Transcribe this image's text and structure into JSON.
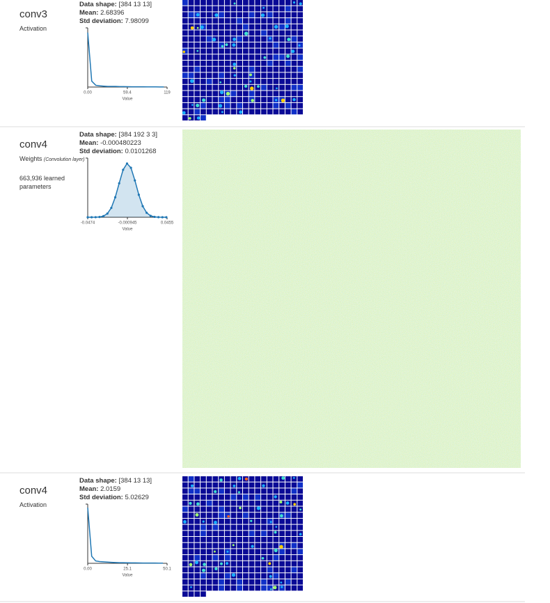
{
  "labels": {
    "data_shape": "Data shape:",
    "mean": "Mean:",
    "std": "Std deviation:"
  },
  "layers": [
    {
      "name": "conv3",
      "type": "Activation",
      "data_shape": "[384 13 13]",
      "mean": "2.68396",
      "std": "7.98099",
      "histogram": {
        "type": "line",
        "color": "#1f77b4",
        "fill": false,
        "markers": false,
        "xlabel": "Value",
        "xlim": [
          0,
          119
        ],
        "ylim": [
          0,
          100
        ],
        "xticks": [
          {
            "value": 0,
            "label": "0.00"
          },
          59.4,
          119
        ],
        "x": [
          0,
          6,
          12,
          18,
          24,
          30,
          36,
          42,
          48,
          54,
          60,
          66,
          72,
          78,
          84,
          90,
          96,
          102,
          108,
          114
        ],
        "values": [
          92,
          10,
          3,
          2,
          1.5,
          1,
          1,
          1,
          0.8,
          0.7,
          0.6,
          0.5,
          0.5,
          0.4,
          0.4,
          0.3,
          0.3,
          0.3,
          0.2,
          0.2
        ]
      }
    },
    {
      "name": "conv4",
      "type": "Weights",
      "type_note": "(Convolution layer)",
      "params": "663,936 learned parameters",
      "data_shape": "[384 192 3 3]",
      "mean": "-0.000480223",
      "std": "0.0101268",
      "histogram": {
        "type": "line",
        "color": "#1f77b4",
        "fill": true,
        "markers": true,
        "xlabel": "Value",
        "xlim": [
          -0.0474,
          0.0455
        ],
        "ylim": [
          0,
          110
        ],
        "xticks": [
          -0.0474,
          -0.000945,
          0.0455
        ],
        "x": [
          -0.0474,
          -0.0428,
          -0.0382,
          -0.0336,
          -0.029,
          -0.0244,
          -0.0198,
          -0.0152,
          -0.0106,
          -0.006,
          -0.0014,
          0.0032,
          0.0078,
          0.0124,
          0.017,
          0.0216,
          0.0262,
          0.0308,
          0.0354,
          0.04,
          0.0446
        ],
        "values": [
          0,
          0,
          0.1,
          0.5,
          2.1,
          6.8,
          17.4,
          37,
          63.1,
          88.2,
          99.9,
          91.9,
          68.5,
          41.8,
          20.5,
          8.3,
          2.7,
          0.7,
          0.2,
          0,
          0
        ]
      }
    },
    {
      "name": "conv4",
      "type": "Activation",
      "data_shape": "[384 13 13]",
      "mean": "2.0159",
      "std": "5.02629",
      "histogram": {
        "type": "line",
        "color": "#1f77b4",
        "fill": false,
        "markers": false,
        "xlabel": "Value",
        "xlim": [
          0,
          50.1
        ],
        "ylim": [
          0,
          100
        ],
        "xticks": [
          {
            "value": 0,
            "label": "0.00"
          },
          25.1,
          50.1
        ],
        "x": [
          0,
          2.5,
          5,
          7.5,
          10,
          12.5,
          15,
          17.5,
          20,
          22.5,
          25,
          27.5,
          30,
          32.5,
          35,
          37.5,
          40,
          42.5,
          45,
          47.5
        ],
        "values": [
          94,
          12,
          4,
          3,
          2.5,
          2,
          1.6,
          1.3,
          1.1,
          1,
          0.9,
          0.8,
          0.7,
          0.6,
          0.5,
          0.5,
          0.4,
          0.4,
          0.3,
          0.3
        ]
      }
    }
  ]
}
